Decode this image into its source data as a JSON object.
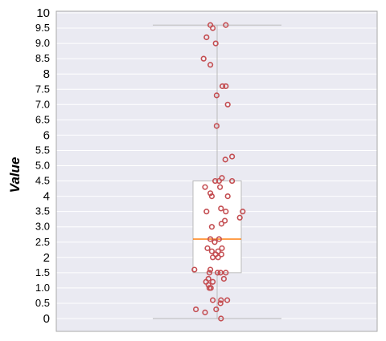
{
  "chart_data": {
    "type": "box",
    "title": "",
    "xlabel": "",
    "ylabel": "Value",
    "ylim": [
      -0.4,
      10
    ],
    "grid": true,
    "yticks": [
      {
        "value": 0,
        "label": "0",
        "major": true
      },
      {
        "value": 0.5,
        "label": "0.5",
        "major": false
      },
      {
        "value": 1.0,
        "label": "1.0",
        "major": false
      },
      {
        "value": 1.5,
        "label": "1.5",
        "major": false
      },
      {
        "value": 2,
        "label": "2",
        "major": true
      },
      {
        "value": 2.5,
        "label": "2.5",
        "major": false
      },
      {
        "value": 3.0,
        "label": "3.0",
        "major": false
      },
      {
        "value": 3.5,
        "label": "3.5",
        "major": false
      },
      {
        "value": 4,
        "label": "4",
        "major": true
      },
      {
        "value": 4.5,
        "label": "4.5",
        "major": false
      },
      {
        "value": 5.0,
        "label": "5.0",
        "major": false
      },
      {
        "value": 5.5,
        "label": "5.5",
        "major": false
      },
      {
        "value": 6,
        "label": "6",
        "major": true
      },
      {
        "value": 6.5,
        "label": "6.5",
        "major": false
      },
      {
        "value": 7.0,
        "label": "7.0",
        "major": false
      },
      {
        "value": 7.5,
        "label": "7.5",
        "major": false
      },
      {
        "value": 8,
        "label": "8",
        "major": true
      },
      {
        "value": 8.5,
        "label": "8.5",
        "major": false
      },
      {
        "value": 9.0,
        "label": "9.0",
        "major": false
      },
      {
        "value": 9.5,
        "label": "9.5",
        "major": false
      },
      {
        "value": 10,
        "label": "10",
        "major": true
      }
    ],
    "box": {
      "whisker_low": 0,
      "q1": 1.5,
      "median": 2.6,
      "q3": 4.5,
      "whisker_high": 9.6
    },
    "colors": {
      "background": "#eaeaf2",
      "grid": "#ffffff",
      "box_fill": "#ffffff",
      "box_edge": "#bbbbbb",
      "median": "#ff7f0e",
      "point_edge": "#c44e52"
    },
    "points": [
      {
        "dx": -0.14,
        "y": 9.6
      },
      {
        "dx": 0.18,
        "y": 9.6
      },
      {
        "dx": -0.09,
        "y": 9.5
      },
      {
        "dx": -0.22,
        "y": 9.2
      },
      {
        "dx": -0.03,
        "y": 9.0
      },
      {
        "dx": -0.28,
        "y": 8.5
      },
      {
        "dx": -0.14,
        "y": 8.3
      },
      {
        "dx": 0.11,
        "y": 7.6
      },
      {
        "dx": 0.18,
        "y": 7.6
      },
      {
        "dx": -0.01,
        "y": 7.3
      },
      {
        "dx": 0.22,
        "y": 7.0
      },
      {
        "dx": -0.01,
        "y": 6.3
      },
      {
        "dx": 0.31,
        "y": 5.3
      },
      {
        "dx": 0.17,
        "y": 5.2
      },
      {
        "dx": 0.1,
        "y": 4.6
      },
      {
        "dx": -0.04,
        "y": 4.5
      },
      {
        "dx": 0.04,
        "y": 4.5
      },
      {
        "dx": 0.31,
        "y": 4.5
      },
      {
        "dx": -0.25,
        "y": 4.3
      },
      {
        "dx": 0.06,
        "y": 4.3
      },
      {
        "dx": -0.14,
        "y": 4.1
      },
      {
        "dx": -0.11,
        "y": 4.0
      },
      {
        "dx": 0.22,
        "y": 4.0
      },
      {
        "dx": 0.08,
        "y": 3.6
      },
      {
        "dx": -0.22,
        "y": 3.5
      },
      {
        "dx": 0.18,
        "y": 3.5
      },
      {
        "dx": 0.53,
        "y": 3.5
      },
      {
        "dx": 0.47,
        "y": 3.3
      },
      {
        "dx": 0.16,
        "y": 3.2
      },
      {
        "dx": 0.09,
        "y": 3.1
      },
      {
        "dx": -0.11,
        "y": 3.0
      },
      {
        "dx": -0.14,
        "y": 2.6
      },
      {
        "dx": 0.04,
        "y": 2.6
      },
      {
        "dx": -0.05,
        "y": 2.5
      },
      {
        "dx": -0.2,
        "y": 2.3
      },
      {
        "dx": 0.1,
        "y": 2.3
      },
      {
        "dx": -0.11,
        "y": 2.2
      },
      {
        "dx": 0.02,
        "y": 2.2
      },
      {
        "dx": -0.03,
        "y": 2.1
      },
      {
        "dx": 0.09,
        "y": 2.1
      },
      {
        "dx": -0.09,
        "y": 2.0
      },
      {
        "dx": 0.02,
        "y": 2.0
      },
      {
        "dx": -0.47,
        "y": 1.6
      },
      {
        "dx": -0.14,
        "y": 1.6
      },
      {
        "dx": -0.16,
        "y": 1.5
      },
      {
        "dx": 0.01,
        "y": 1.5
      },
      {
        "dx": 0.07,
        "y": 1.5
      },
      {
        "dx": 0.18,
        "y": 1.5
      },
      {
        "dx": -0.18,
        "y": 1.3
      },
      {
        "dx": 0.14,
        "y": 1.3
      },
      {
        "dx": -0.23,
        "y": 1.2
      },
      {
        "dx": -0.09,
        "y": 1.2
      },
      {
        "dx": -0.18,
        "y": 1.1
      },
      {
        "dx": -0.16,
        "y": 1.0
      },
      {
        "dx": -0.13,
        "y": 1.0
      },
      {
        "dx": -0.09,
        "y": 0.6
      },
      {
        "dx": 0.08,
        "y": 0.6
      },
      {
        "dx": 0.21,
        "y": 0.6
      },
      {
        "dx": 0.07,
        "y": 0.5
      },
      {
        "dx": -0.44,
        "y": 0.3
      },
      {
        "dx": -0.02,
        "y": 0.3
      },
      {
        "dx": -0.25,
        "y": 0.2
      },
      {
        "dx": 0.08,
        "y": 0.0
      }
    ]
  }
}
